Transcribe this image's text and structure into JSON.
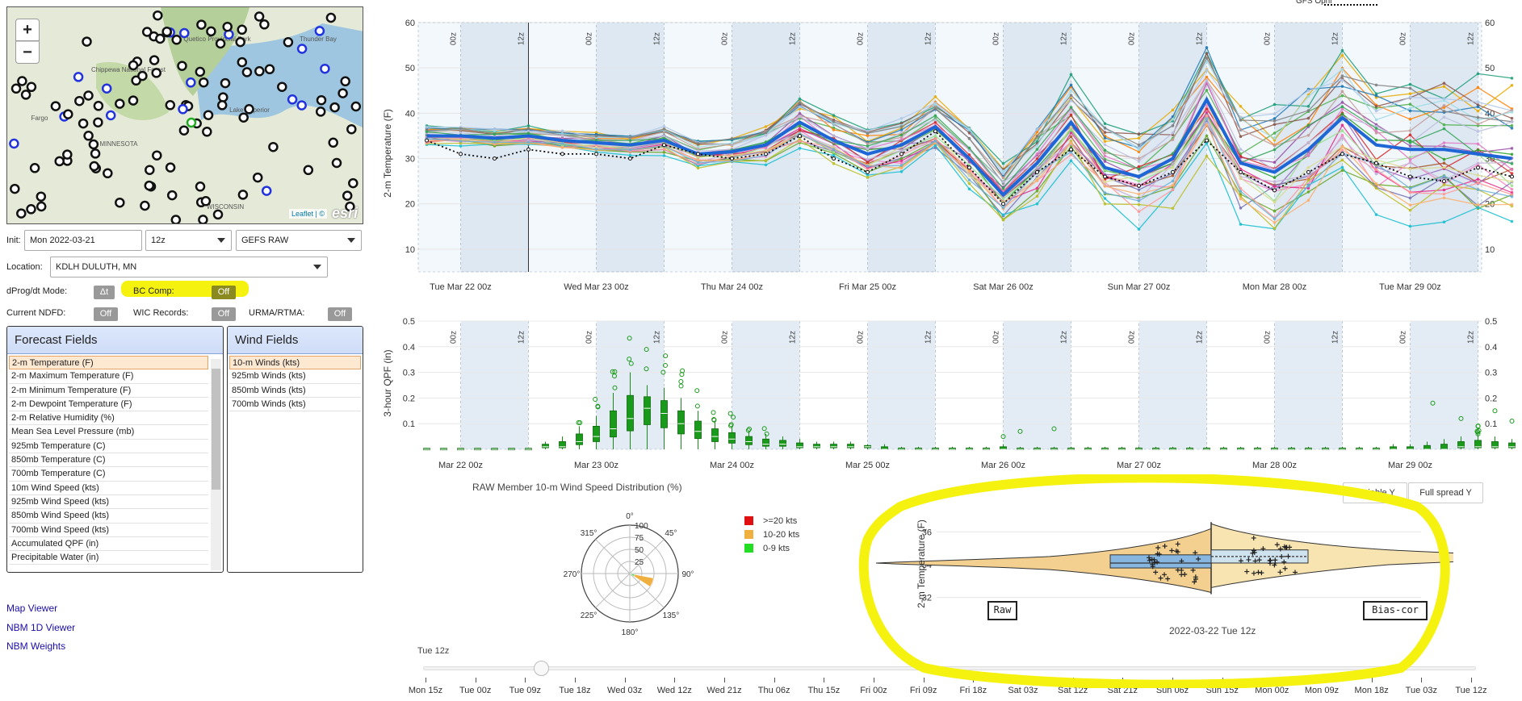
{
  "map": {
    "zoom_in": "+",
    "zoom_out": "−",
    "attribution": "Leaflet | ©",
    "logo": "esri",
    "place_labels": [
      "Quetico Provincial Park",
      "Thunder Bay",
      "Chippewa National Forest",
      "Fargo",
      "MINNESOTA",
      "WISCONSIN",
      "Lake Superior"
    ]
  },
  "controls": {
    "init_label": "Init:",
    "init_date": "Mon 2022-03-21",
    "init_hour": "12z",
    "model": "GEFS RAW",
    "location_label": "Location:",
    "location": "KDLH DULUTH, MN",
    "dprog_label": "dProg/dt Mode:",
    "dprog_btn": "Δt",
    "bc_label": "BC Comp:",
    "bc_btn": "Off",
    "ndfd_label": "Current NDFD:",
    "ndfd_btn": "Off",
    "wic_label": "WIC Records:",
    "wic_btn": "Off",
    "urma_label": "URMA/RTMA:",
    "urma_btn": "Off"
  },
  "forecast_fields": {
    "title": "Forecast Fields",
    "items": [
      "2-m Temperature (F)",
      "2-m Maximum Temperature (F)",
      "2-m Minimum Temperature (F)",
      "2-m Dewpoint Temperature (F)",
      "2-m Relative Humidity (%)",
      "Mean Sea Level Pressure (mb)",
      "925mb Temperature (C)",
      "850mb Temperature (C)",
      "700mb Temperature (C)",
      "10m Wind Speed (kts)",
      "925mb Wind Speed (kts)",
      "850mb Wind Speed (kts)",
      "700mb Wind Speed (kts)",
      "Accumulated QPF (in)",
      "Precipitable Water (in)"
    ]
  },
  "wind_fields": {
    "title": "Wind Fields",
    "items": [
      "10-m Winds (kts)",
      "925mb Winds (kts)",
      "850mb Winds (kts)",
      "700mb Winds (kts)"
    ]
  },
  "links": [
    "Map Viewer",
    "NBM 1D Viewer",
    "NBM Weights"
  ],
  "chart_data": [
    {
      "type": "line",
      "ylabel": "2-m Temperature (F)",
      "ylim": [
        5,
        60
      ],
      "yticks": [
        10,
        20,
        30,
        40,
        50,
        60
      ],
      "xtick_labels": [
        "Tue Mar 22 00z",
        "Wed Mar 23 00z",
        "Thu Mar 24 00z",
        "Fri Mar 25 00z",
        "Sat Mar 26 00z",
        "Sun Mar 27 00z",
        "Mon Mar 28 00z",
        "Tue Mar 29 00z"
      ],
      "band_labels": [
        "00z",
        "12z"
      ],
      "legend_fragment": "GFS Opnl",
      "x_hours": [
        0,
        6,
        12,
        18,
        24,
        30,
        36,
        42,
        48,
        54,
        60,
        66,
        72,
        78,
        84,
        90,
        96,
        102,
        108,
        114,
        120,
        126,
        132,
        138,
        144,
        150,
        156,
        162,
        168,
        174,
        180,
        186,
        192
      ],
      "ensemble_mean": [
        35,
        35,
        34.5,
        35,
        34,
        33.5,
        33,
        34,
        31,
        31.5,
        33,
        38,
        34,
        31,
        33,
        37,
        30,
        22,
        29,
        38,
        28,
        26,
        30,
        43,
        29,
        27,
        32,
        39,
        33,
        32,
        32,
        31,
        30
      ],
      "gfs_opnl": [
        34,
        31,
        30,
        32,
        31,
        31,
        30,
        33,
        31,
        30,
        31,
        35,
        30,
        27,
        31,
        36,
        28,
        20,
        27,
        32,
        26,
        24,
        27,
        34,
        27,
        23,
        27,
        31,
        29,
        26,
        25,
        28,
        26
      ],
      "member_spread": [
        2,
        2,
        2,
        2,
        2,
        2,
        2,
        3,
        3,
        3,
        4,
        5,
        5,
        5,
        6,
        6,
        7,
        6,
        8,
        9,
        9,
        10,
        11,
        12,
        12,
        13,
        13,
        14,
        14,
        15,
        15,
        15,
        15
      ]
    },
    {
      "type": "box",
      "ylabel": "3-hour QPF (in)",
      "ylim": [
        0,
        0.5
      ],
      "yticks": [
        0.1,
        0.2,
        0.3,
        0.4,
        0.5
      ],
      "xtick_labels": [
        "Mar 22 00z",
        "Mar 23 00z",
        "Mar 24 00z",
        "Mar 25 00z",
        "Mar 26 00z",
        "Mar 27 00z",
        "Mar 28 00z",
        "Mar 29 00z"
      ],
      "band_labels": [
        "00z",
        "12z"
      ],
      "x_hours": [
        0,
        3,
        6,
        9,
        12,
        15,
        18,
        21,
        24,
        27,
        30,
        33,
        36,
        39,
        42,
        45,
        48,
        51,
        54,
        57,
        60,
        63,
        66,
        69,
        72,
        75,
        78,
        81,
        84,
        87,
        90,
        93,
        96,
        99,
        102,
        105,
        108,
        111,
        114,
        117,
        120,
        123,
        126,
        129,
        132,
        135,
        138,
        141,
        144,
        147,
        150,
        153,
        156,
        159,
        162,
        165,
        168,
        171,
        174,
        177,
        180,
        183,
        186,
        189,
        192
      ],
      "medians": [
        0,
        0,
        0,
        0,
        0,
        0,
        0,
        0.01,
        0.01,
        0.03,
        0.05,
        0.08,
        0.12,
        0.16,
        0.14,
        0.1,
        0.07,
        0.05,
        0.04,
        0.03,
        0.02,
        0.02,
        0.01,
        0.01,
        0.01,
        0.01,
        0.01,
        0,
        0,
        0,
        0,
        0,
        0,
        0,
        0,
        0,
        0,
        0,
        0,
        0,
        0,
        0,
        0,
        0,
        0,
        0,
        0,
        0,
        0,
        0,
        0,
        0,
        0,
        0,
        0,
        0,
        0,
        0,
        0,
        0,
        0,
        0.01,
        0.01,
        0.01,
        0.01
      ],
      "upper": [
        0,
        0,
        0,
        0,
        0,
        0,
        0,
        0.03,
        0.05,
        0.09,
        0.13,
        0.22,
        0.3,
        0.25,
        0.24,
        0.2,
        0.15,
        0.11,
        0.09,
        0.07,
        0.06,
        0.05,
        0.04,
        0.03,
        0.03,
        0.03,
        0.02,
        0.02,
        0.01,
        0.01,
        0.01,
        0.01,
        0.01,
        0.01,
        0.02,
        0.01,
        0.01,
        0.01,
        0.01,
        0.01,
        0.01,
        0.01,
        0.01,
        0.01,
        0.01,
        0.01,
        0.01,
        0.01,
        0.01,
        0.01,
        0.01,
        0.01,
        0.01,
        0.01,
        0.01,
        0.01,
        0.01,
        0.02,
        0.02,
        0.03,
        0.04,
        0.05,
        0.06,
        0.05,
        0.04
      ]
    }
  ],
  "wind_rose": {
    "title": "RAW Member 10-m Wind Speed Distribution (%)",
    "radial_ticks": [
      "100",
      "75",
      "50",
      "25"
    ],
    "angles": [
      "0°",
      "45°",
      "90°",
      "135°",
      "180°",
      "225°",
      "270°",
      "315°"
    ],
    "legend": [
      {
        "label": ">=20 kts",
        "color": "#e01010"
      },
      {
        "label": "10-20 kts",
        "color": "#f0b040"
      },
      {
        "label": "0-9 kts",
        "color": "#22dd22"
      }
    ],
    "wedge_dir_deg": 112,
    "wedge_pct_10_20": 40,
    "wedge_pct_0_9": 10
  },
  "violin": {
    "ylabel": "2-m Temperature (F)",
    "yticks": [
      32,
      34,
      36
    ],
    "raw_label": "Raw",
    "bc_label": "Bias-cor",
    "xlabel": "2022-03-22 Tue 12z",
    "btn_variable": "Variable Y",
    "btn_full": "Full spread Y",
    "raw_median": 34.1,
    "raw_q1": 33.8,
    "raw_q3": 34.6,
    "bc_median": 34.5,
    "bc_q1": 34.1,
    "bc_q3": 34.9
  },
  "slider": {
    "current": "Tue 12z",
    "ticks": [
      "Mon 15z",
      "Tue 00z",
      "Tue 09z",
      "Tue 18z",
      "Wed 03z",
      "Wed 12z",
      "Wed 21z",
      "Thu 06z",
      "Thu 15z",
      "Fri 00z",
      "Fri 09z",
      "Fri 18z",
      "Sat 03z",
      "Sat 12z",
      "Sat 21z",
      "Sun 06z",
      "Sun 15z",
      "Mon 00z",
      "Mon 09z",
      "Mon 18z",
      "Tue 03z",
      "Tue 12z"
    ]
  }
}
